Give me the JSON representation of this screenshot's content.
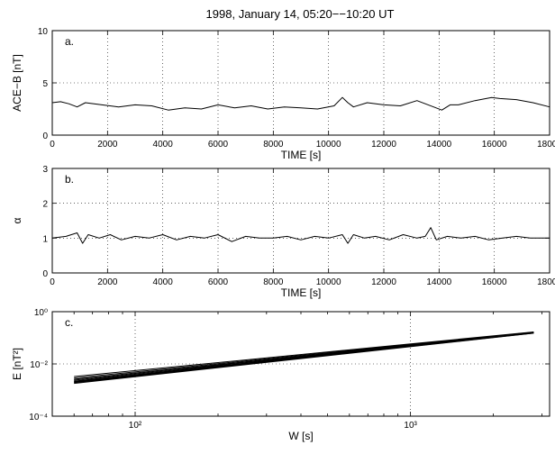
{
  "figure": {
    "title": "1998, January 14, 05:20−−10:20 UT"
  },
  "chart_data": [
    {
      "type": "line",
      "panel_label": "a.",
      "xlabel": "TIME [s]",
      "ylabel": "ACE−B [nT]",
      "xlim": [
        0,
        18000
      ],
      "ylim": [
        0,
        10
      ],
      "xticks": [
        0,
        2000,
        4000,
        6000,
        8000,
        10000,
        12000,
        14000,
        16000,
        18000
      ],
      "yticks": [
        0,
        5,
        10
      ],
      "grid": true,
      "series": [
        {
          "x": [
            0,
            300,
            600,
            900,
            1200,
            1800,
            2400,
            3000,
            3600,
            4200,
            4800,
            5400,
            6000,
            6600,
            7200,
            7800,
            8400,
            9000,
            9600,
            10200,
            10500,
            10700,
            10900,
            11400,
            12000,
            12600,
            13200,
            13800,
            14100,
            14400,
            14700,
            15300,
            15900,
            16200,
            16800,
            17400,
            18000
          ],
          "values": [
            3.1,
            3.2,
            3.0,
            2.7,
            3.1,
            2.9,
            2.7,
            2.9,
            2.8,
            2.4,
            2.6,
            2.5,
            2.9,
            2.6,
            2.8,
            2.5,
            2.7,
            2.6,
            2.5,
            2.8,
            3.6,
            3.1,
            2.7,
            3.1,
            2.9,
            2.8,
            3.3,
            2.7,
            2.4,
            2.9,
            2.9,
            3.3,
            3.6,
            3.5,
            3.4,
            3.1,
            2.7
          ]
        }
      ]
    },
    {
      "type": "line",
      "panel_label": "b.",
      "xlabel": "TIME [s]",
      "ylabel": "α",
      "xlim": [
        0,
        18000
      ],
      "ylim": [
        0,
        3
      ],
      "xticks": [
        0,
        2000,
        4000,
        6000,
        8000,
        10000,
        12000,
        14000,
        16000,
        18000
      ],
      "yticks": [
        0,
        1,
        2,
        3
      ],
      "grid": true,
      "series": [
        {
          "x": [
            0,
            500,
            900,
            1100,
            1300,
            1700,
            2100,
            2500,
            3000,
            3500,
            4000,
            4500,
            5000,
            5500,
            6000,
            6500,
            7000,
            7500,
            8000,
            8500,
            9000,
            9500,
            10000,
            10500,
            10700,
            10900,
            11300,
            11700,
            12200,
            12700,
            13200,
            13500,
            13700,
            13900,
            14300,
            14800,
            15300,
            15800,
            16300,
            16800,
            17300,
            18000
          ],
          "values": [
            1.0,
            1.05,
            1.15,
            0.85,
            1.1,
            1.0,
            1.1,
            0.95,
            1.05,
            1.0,
            1.1,
            0.95,
            1.05,
            1.0,
            1.1,
            0.9,
            1.05,
            1.0,
            1.0,
            1.05,
            0.95,
            1.05,
            1.0,
            1.1,
            0.85,
            1.1,
            1.0,
            1.05,
            0.95,
            1.1,
            1.0,
            1.05,
            1.3,
            0.95,
            1.05,
            1.0,
            1.05,
            0.95,
            1.0,
            1.05,
            1.0,
            1.0
          ]
        }
      ]
    },
    {
      "type": "line",
      "panel_label": "c.",
      "xlabel": "W [s]",
      "ylabel": "E [nT²]",
      "xscale": "log",
      "yscale": "log",
      "xlim": [
        50,
        3200
      ],
      "ylim": [
        0.0001,
        1
      ],
      "xticks": [
        100,
        1000
      ],
      "xtick_labels": [
        "10²",
        "10³"
      ],
      "yticks": [
        0.0001,
        0.01,
        1
      ],
      "ytick_labels": [
        "10⁻⁴",
        "10⁻²",
        "10⁰"
      ],
      "grid": true,
      "series": [
        {
          "x": [
            60,
            2800
          ],
          "values": [
            0.0018,
            0.15
          ]
        },
        {
          "x": [
            60,
            2800
          ],
          "values": [
            0.0019,
            0.152
          ]
        },
        {
          "x": [
            60,
            2800
          ],
          "values": [
            0.002,
            0.154
          ]
        },
        {
          "x": [
            60,
            2800
          ],
          "values": [
            0.0021,
            0.156
          ]
        },
        {
          "x": [
            60,
            2800
          ],
          "values": [
            0.0022,
            0.158
          ]
        },
        {
          "x": [
            60,
            2800
          ],
          "values": [
            0.0024,
            0.16
          ]
        },
        {
          "x": [
            60,
            2800
          ],
          "values": [
            0.0026,
            0.162
          ]
        },
        {
          "x": [
            60,
            2800
          ],
          "values": [
            0.0029,
            0.165
          ]
        },
        {
          "x": [
            60,
            2800
          ],
          "values": [
            0.0033,
            0.168
          ]
        }
      ]
    }
  ]
}
